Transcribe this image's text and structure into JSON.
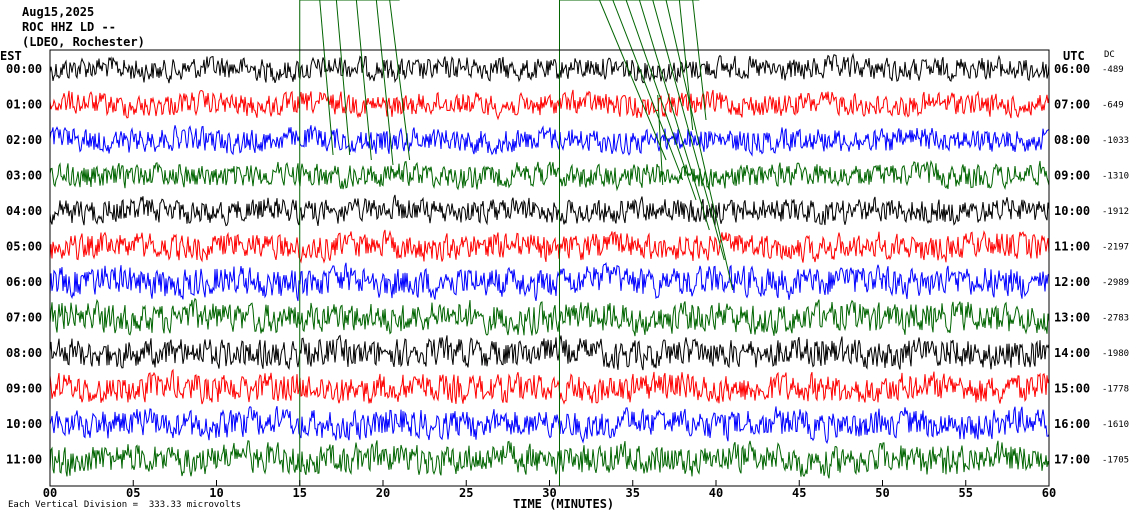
{
  "header": {
    "date": "Aug15,2025",
    "station": "ROC HHZ LD --",
    "network": "(LDEO, Rochester)"
  },
  "left_axis_label": "EST",
  "right_axis_label": "UTC",
  "dc_label": "DC",
  "footer_text": "Each Vertical Division =  333.33 microvolts",
  "chart_data": {
    "type": "line",
    "xlabel": "TIME (MINUTES)",
    "x_ticks": [
      "00",
      "05",
      "10",
      "15",
      "20",
      "25",
      "30",
      "35",
      "40",
      "45",
      "50",
      "55",
      "60"
    ],
    "xlim": [
      0,
      60
    ],
    "rows": [
      {
        "est": "00:00",
        "utc": "06:00",
        "dc": "-489",
        "color": "#000000",
        "noise": 0.35
      },
      {
        "est": "01:00",
        "utc": "07:00",
        "dc": "-649",
        "color": "#ff0000",
        "noise": 0.35
      },
      {
        "est": "02:00",
        "utc": "08:00",
        "dc": "-1033",
        "color": "#0000ff",
        "noise": 0.38
      },
      {
        "est": "03:00",
        "utc": "09:00",
        "dc": "-1310",
        "color": "#006400",
        "noise": 0.38
      },
      {
        "est": "04:00",
        "utc": "10:00",
        "dc": "-1912",
        "color": "#000000",
        "noise": 0.4
      },
      {
        "est": "05:00",
        "utc": "11:00",
        "dc": "-2197",
        "color": "#ff0000",
        "noise": 0.45
      },
      {
        "est": "06:00",
        "utc": "12:00",
        "dc": "-2989",
        "color": "#0000ff",
        "noise": 0.6
      },
      {
        "est": "07:00",
        "utc": "13:00",
        "dc": "-2783",
        "color": "#006400",
        "noise": 0.6
      },
      {
        "est": "08:00",
        "utc": "14:00",
        "dc": "-1980",
        "color": "#000000",
        "noise": 0.55
      },
      {
        "est": "09:00",
        "utc": "15:00",
        "dc": "-1778",
        "color": "#ff0000",
        "noise": 0.55
      },
      {
        "est": "10:00",
        "utc": "16:00",
        "dc": "-1610",
        "color": "#0000ff",
        "noise": 0.55
      },
      {
        "est": "11:00",
        "utc": "17:00",
        "dc": "-1705",
        "color": "#006400",
        "noise": 0.6
      }
    ],
    "event_color": "#006400"
  }
}
